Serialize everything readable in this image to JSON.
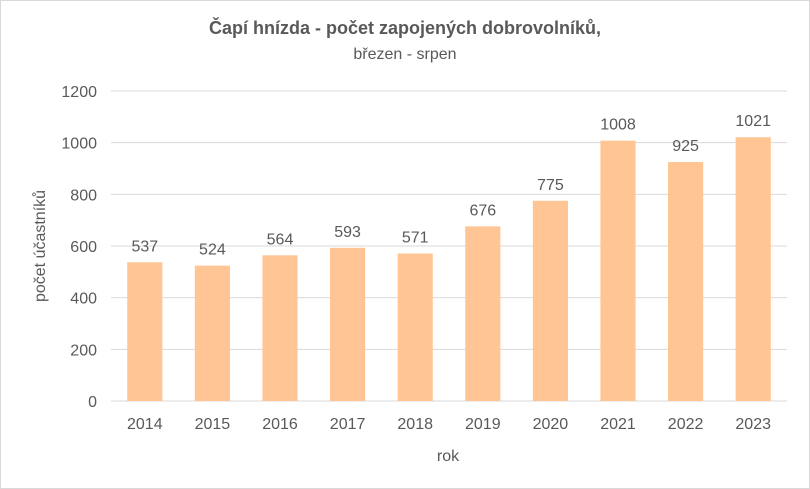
{
  "chart_data": {
    "type": "bar",
    "title": "Čapí hnízda - počet zapojených dobrovolníků,",
    "subtitle": "březen - srpen",
    "xlabel": "rok",
    "ylabel": "počet účastníků",
    "categories": [
      "2014",
      "2015",
      "2016",
      "2017",
      "2018",
      "2019",
      "2020",
      "2021",
      "2022",
      "2023"
    ],
    "values": [
      537,
      524,
      564,
      593,
      571,
      676,
      775,
      1008,
      925,
      1021
    ],
    "ylim": [
      0,
      1200
    ],
    "yticks": [
      0,
      200,
      400,
      600,
      800,
      1000,
      1200
    ],
    "grid": true,
    "legend": "none",
    "bar_color": "#FFC594",
    "grid_color": "#D9D9D9",
    "text_color": "#595959"
  }
}
